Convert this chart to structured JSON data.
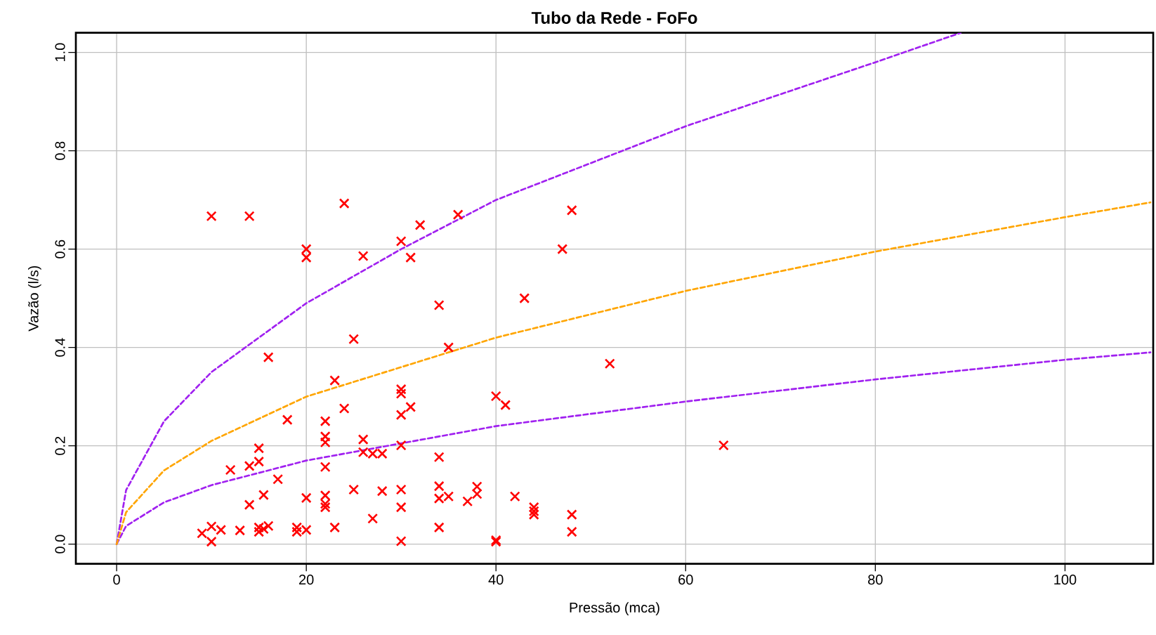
{
  "chart_data": {
    "type": "scatter",
    "title": "Tubo da Rede - FoFo",
    "xlabel": "Pressão (mca)",
    "ylabel": "Vazão (l/s)",
    "xlim": [
      -4.3,
      109.3
    ],
    "ylim": [
      -0.04,
      1.04
    ],
    "xticks": [
      0,
      20,
      40,
      60,
      80,
      100
    ],
    "yticks": [
      {
        "value": 0,
        "label": "0.0"
      },
      {
        "value": 0.2,
        "label": "0.2"
      },
      {
        "value": 0.4,
        "label": "0.4"
      },
      {
        "value": 0.6,
        "label": "0.6"
      },
      {
        "value": 0.8,
        "label": "0.8"
      },
      {
        "value": 1,
        "label": "1.0"
      }
    ],
    "grid": true,
    "series": [
      {
        "color": "#ff0000",
        "marker": "cross",
        "x": [
          10,
          14,
          24,
          20,
          20,
          30,
          32,
          36,
          26,
          31,
          48,
          47,
          43,
          34,
          35,
          25,
          16,
          52,
          23,
          30,
          30,
          31,
          24,
          40,
          41,
          30,
          18,
          22,
          22,
          22,
          26,
          15,
          30,
          64,
          26,
          27,
          28,
          15,
          14,
          12,
          22,
          34,
          17,
          34,
          38,
          15.5,
          22,
          25,
          28,
          30,
          38,
          42,
          35,
          34,
          20,
          22,
          22,
          14,
          30,
          37,
          44,
          44,
          44,
          48,
          27,
          11,
          10,
          9,
          13,
          15,
          15,
          16,
          15.5,
          19,
          19,
          20,
          23,
          34,
          48,
          10,
          30,
          40,
          40
        ],
        "values": [
          0.667,
          0.667,
          0.693,
          0.6,
          0.583,
          0.616,
          0.649,
          0.67,
          0.586,
          0.583,
          0.679,
          0.6,
          0.5,
          0.486,
          0.4,
          0.417,
          0.38,
          0.367,
          0.333,
          0.315,
          0.306,
          0.279,
          0.276,
          0.301,
          0.283,
          0.263,
          0.253,
          0.25,
          0.219,
          0.207,
          0.213,
          0.195,
          0.201,
          0.201,
          0.187,
          0.184,
          0.184,
          0.168,
          0.159,
          0.151,
          0.157,
          0.177,
          0.132,
          0.118,
          0.117,
          0.1,
          0.099,
          0.111,
          0.108,
          0.111,
          0.102,
          0.097,
          0.097,
          0.093,
          0.094,
          0.082,
          0.075,
          0.08,
          0.075,
          0.087,
          0.075,
          0.067,
          0.06,
          0.06,
          0.052,
          0.029,
          0.036,
          0.022,
          0.028,
          0.034,
          0.025,
          0.037,
          0.031,
          0.034,
          0.025,
          0.029,
          0.034,
          0.034,
          0.025,
          0.005,
          0.006,
          0.008,
          0.005
        ]
      },
      {
        "type": "line",
        "color": "#ffa500",
        "line_style": "dashed",
        "x": [
          0,
          1,
          5,
          10,
          20,
          40,
          60,
          80,
          100,
          109
        ],
        "values": [
          0,
          0.065,
          0.15,
          0.21,
          0.3,
          0.42,
          0.515,
          0.595,
          0.665,
          0.695
        ]
      },
      {
        "type": "line",
        "color": "#a020f0",
        "line_style": "dashed",
        "x": [
          0,
          1,
          5,
          10,
          20,
          30,
          40,
          60,
          80,
          89
        ],
        "values": [
          0,
          0.11,
          0.25,
          0.35,
          0.49,
          0.6,
          0.7,
          0.85,
          0.98,
          1.04
        ]
      },
      {
        "type": "line",
        "color": "#a020f0",
        "line_style": "dashed",
        "x": [
          0,
          1,
          5,
          10,
          20,
          40,
          60,
          80,
          100,
          109
        ],
        "values": [
          0,
          0.037,
          0.085,
          0.12,
          0.17,
          0.24,
          0.29,
          0.335,
          0.375,
          0.39
        ]
      }
    ]
  }
}
